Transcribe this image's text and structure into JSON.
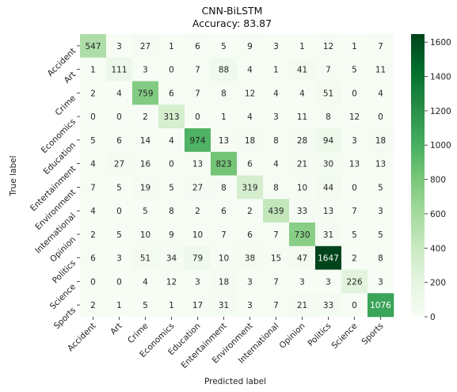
{
  "chart_data": {
    "type": "heatmap",
    "title": "CNN-BiLSTM",
    "subtitle": "Accuracy: 83.87",
    "xlabel": "Predicted label",
    "ylabel": "True label",
    "x_categories": [
      "Accident",
      "Art",
      "Crime",
      "Economics",
      "Education",
      "Entertainment",
      "Environment",
      "International",
      "Opinion",
      "Politics",
      "Science",
      "Sports"
    ],
    "y_categories": [
      "Accident",
      "Art",
      "Crime",
      "Economics",
      "Education",
      "Entertainment",
      "Environment",
      "International",
      "Opinion",
      "Politics",
      "Science",
      "Sports"
    ],
    "values": [
      [
        547,
        3,
        27,
        1,
        6,
        5,
        9,
        3,
        1,
        12,
        1,
        7
      ],
      [
        1,
        111,
        3,
        0,
        7,
        88,
        4,
        1,
        41,
        7,
        5,
        11
      ],
      [
        2,
        4,
        759,
        6,
        7,
        8,
        12,
        4,
        4,
        51,
        0,
        4
      ],
      [
        0,
        0,
        2,
        313,
        0,
        1,
        4,
        3,
        11,
        8,
        12,
        0
      ],
      [
        5,
        6,
        14,
        4,
        974,
        13,
        18,
        8,
        28,
        94,
        3,
        18
      ],
      [
        4,
        27,
        16,
        0,
        13,
        823,
        6,
        4,
        21,
        30,
        13,
        13
      ],
      [
        7,
        5,
        19,
        5,
        27,
        8,
        319,
        8,
        10,
        44,
        0,
        5
      ],
      [
        4,
        0,
        5,
        8,
        2,
        6,
        2,
        439,
        33,
        13,
        7,
        3
      ],
      [
        2,
        5,
        10,
        9,
        10,
        7,
        6,
        7,
        730,
        31,
        5,
        5
      ],
      [
        6,
        3,
        51,
        34,
        79,
        10,
        38,
        15,
        47,
        1647,
        2,
        8
      ],
      [
        0,
        0,
        4,
        12,
        3,
        18,
        3,
        7,
        3,
        3,
        226,
        3
      ],
      [
        2,
        1,
        5,
        1,
        17,
        31,
        3,
        7,
        21,
        33,
        0,
        1076
      ]
    ],
    "colorbar": {
      "min": 0,
      "max": 1647,
      "ticks": [
        "0",
        "200",
        "400",
        "600",
        "800",
        "1000",
        "1200",
        "1400",
        "1600"
      ],
      "tick_values": [
        0,
        200,
        400,
        600,
        800,
        1000,
        1200,
        1400,
        1600
      ]
    },
    "colormap": "Greens",
    "color_stops": [
      "#f7fcf5",
      "#e5f5e0",
      "#c7e9c0",
      "#a1d99b",
      "#74c476",
      "#41ab5d",
      "#238b45",
      "#006d2c",
      "#00441b"
    ]
  }
}
